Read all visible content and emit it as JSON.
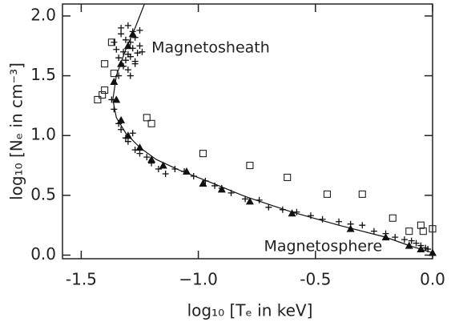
{
  "chart_data": {
    "type": "scatter",
    "x_label": "log₁₀ [Tₑ in keV]",
    "y_label": "log₁₀ [Nₑ in cm⁻³]",
    "annotations": [
      {
        "text": "Magnetosheath",
        "x": -1.2,
        "y": 1.73
      },
      {
        "text": "Magnetosphere",
        "x": -0.72,
        "y": 0.07
      }
    ],
    "xlim": [
      -1.58,
      0.0
    ],
    "ylim": [
      -0.03,
      2.1
    ],
    "xticks": [
      -1.5,
      {
        "value": -1.0,
        "label": "−1.0"
      },
      -0.5,
      {
        "value": 0,
        "label": "0.0"
      }
    ],
    "yticks": [
      {
        "value": 0,
        "label": "0.0"
      },
      {
        "value": 0.5,
        "label": "0.5"
      },
      {
        "value": 1.0,
        "label": "1.0"
      },
      {
        "value": 1.5,
        "label": "1.5"
      },
      {
        "value": 2.0,
        "label": "2.0"
      }
    ],
    "markers": [
      {
        "shape": "plus",
        "x": [
          -1.33,
          -1.31,
          -1.29,
          -1.27,
          -1.25,
          -1.35,
          -1.32,
          -1.3,
          -1.28,
          -1.26,
          -1.34,
          -1.31,
          -1.29,
          -1.27,
          -1.24,
          -1.36,
          -1.33,
          -1.3,
          -1.28,
          -1.25,
          -1.32,
          -1.3,
          -1.27,
          -1.34,
          -1.29,
          -1.37,
          -1.36,
          -1.34,
          -1.33,
          -1.31,
          -1.3,
          -1.28,
          -1.27,
          -1.25,
          -1.22,
          -1.2,
          -1.17,
          -1.14,
          -1.1,
          -1.06,
          -1.02,
          -0.97,
          -0.93,
          -0.9,
          -0.86,
          -0.8,
          -0.74,
          -0.7,
          -0.64,
          -0.58,
          -0.52,
          -0.47,
          -0.4,
          -0.35,
          -0.3,
          -0.25,
          -0.2,
          -0.16,
          -0.12,
          -0.09,
          -0.07,
          -0.05,
          -0.03,
          -0.02
        ],
        "y": [
          1.85,
          1.8,
          1.78,
          1.82,
          1.75,
          1.72,
          1.7,
          1.68,
          1.73,
          1.69,
          1.65,
          1.63,
          1.66,
          1.6,
          1.7,
          1.78,
          1.9,
          1.92,
          1.87,
          1.88,
          1.58,
          1.55,
          1.62,
          1.5,
          1.5,
          1.3,
          1.22,
          1.1,
          1.05,
          0.98,
          0.95,
          1.02,
          0.88,
          0.85,
          0.82,
          0.77,
          0.72,
          0.68,
          0.72,
          0.7,
          0.66,
          0.62,
          0.58,
          0.56,
          0.52,
          0.47,
          0.46,
          0.4,
          0.38,
          0.36,
          0.33,
          0.3,
          0.28,
          0.26,
          0.25,
          0.2,
          0.18,
          0.15,
          0.13,
          0.12,
          0.1,
          0.08,
          0.06,
          0.05
        ]
      },
      {
        "shape": "square",
        "x": [
          -1.43,
          -1.41,
          -1.4,
          -1.4,
          -1.37,
          -1.36,
          -1.2,
          -1.22,
          -0.98,
          -0.78,
          -0.62,
          -0.45,
          -0.3,
          -0.17,
          -0.1,
          -0.05,
          -0.04,
          0.0
        ],
        "y": [
          1.3,
          1.34,
          1.38,
          1.6,
          1.78,
          1.52,
          1.1,
          1.15,
          0.85,
          0.75,
          0.65,
          0.51,
          0.51,
          0.31,
          0.2,
          0.25,
          0.2,
          0.22
        ]
      },
      {
        "shape": "triangle",
        "x": [
          -1.28,
          -1.3,
          -1.33,
          -1.36,
          -1.35,
          -1.33,
          -1.3,
          -1.25,
          -1.2,
          -1.15,
          -1.05,
          -0.98,
          -0.9,
          -0.78,
          -0.6,
          -0.35,
          -0.2,
          -0.1,
          -0.05,
          0.0
        ],
        "y": [
          1.85,
          1.75,
          1.6,
          1.45,
          1.3,
          1.13,
          1.0,
          0.9,
          0.8,
          0.75,
          0.7,
          0.6,
          0.55,
          0.45,
          0.35,
          0.22,
          0.15,
          0.08,
          0.05,
          0.02
        ]
      }
    ],
    "curve": {
      "x": [
        -1.23,
        -1.27,
        -1.31,
        -1.35,
        -1.365,
        -1.35,
        -1.31,
        -1.25,
        -1.18,
        -1.08,
        -0.95,
        -0.8,
        -0.6,
        -0.4,
        -0.2,
        -0.1,
        0.0
      ],
      "y": [
        2.1,
        1.9,
        1.72,
        1.5,
        1.3,
        1.15,
        1.02,
        0.9,
        0.8,
        0.71,
        0.61,
        0.49,
        0.36,
        0.25,
        0.15,
        0.08,
        0.02
      ]
    }
  }
}
